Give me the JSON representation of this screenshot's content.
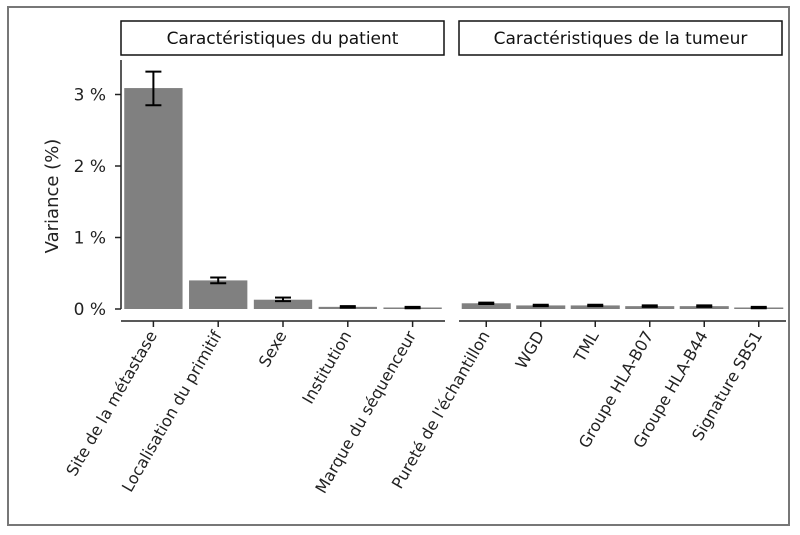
{
  "chart_data": {
    "type": "bar",
    "ylabel": "Variance (%)",
    "y_ticks": [
      "0 %",
      "1 %",
      "2 %",
      "3 %"
    ],
    "ylim": [
      0,
      3.35
    ],
    "grid": false,
    "panels": [
      {
        "title": "Caractéristiques du patient",
        "categories": [
          "Site de la métastase",
          "Localisation du primitif",
          "Sexe",
          "Institution",
          "Marque du séquenceur"
        ],
        "values": [
          3.09,
          0.4,
          0.13,
          0.03,
          0.02
        ],
        "error_low": [
          2.85,
          0.36,
          0.11,
          0.02,
          0.01
        ],
        "error_high": [
          3.32,
          0.44,
          0.16,
          0.04,
          0.03
        ]
      },
      {
        "title": "Caractéristiques de la tumeur",
        "categories": [
          "Pureté de l'échantillon",
          "WGD",
          "TML",
          "Groupe HLA-B07",
          "Groupe HLA-B44",
          "Signature SBS1"
        ],
        "values": [
          0.08,
          0.05,
          0.05,
          0.04,
          0.04,
          0.02
        ],
        "error_low": [
          0.07,
          0.04,
          0.04,
          0.03,
          0.03,
          0.01
        ],
        "error_high": [
          0.09,
          0.06,
          0.06,
          0.05,
          0.05,
          0.03
        ]
      }
    ],
    "colors": {
      "bar": "#808080",
      "error": "#000000",
      "axis": "#222222"
    }
  }
}
